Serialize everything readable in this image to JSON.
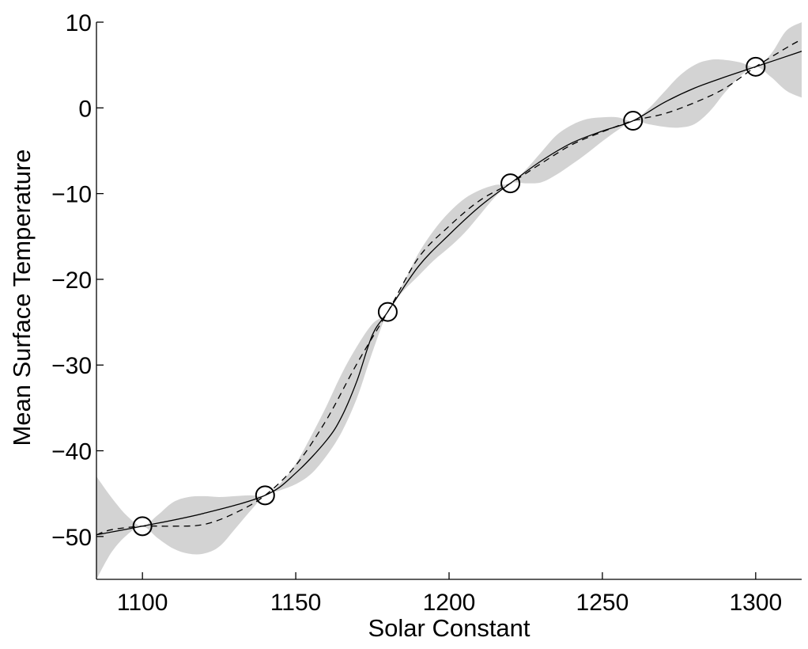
{
  "chart_data": {
    "type": "line",
    "title": "",
    "xlabel": "Solar Constant",
    "ylabel": "Mean Surface Temperature",
    "xlim": [
      1085,
      1315
    ],
    "ylim": [
      -55,
      10
    ],
    "xticks": [
      1100,
      1150,
      1200,
      1250,
      1300
    ],
    "yticks": [
      10,
      0,
      -10,
      -20,
      -30,
      -40,
      -50
    ],
    "xtick_labels": [
      "1100",
      "1150",
      "1200",
      "1250",
      "1300"
    ],
    "ytick_labels": [
      "10",
      "0",
      "−10",
      "−20",
      "−30",
      "−40",
      "−50"
    ],
    "grid": false,
    "legend": "none",
    "colors": {
      "band": "#d3d3d3",
      "line": "#000000"
    },
    "observations": {
      "x": [
        1100,
        1140,
        1180,
        1220,
        1260,
        1300
      ],
      "y": [
        -48.8,
        -45.2,
        -23.8,
        -8.8,
        -1.5,
        4.8
      ]
    },
    "series": [
      {
        "style": "solid",
        "x": [
          1085,
          1100,
          1120,
          1140,
          1150,
          1160,
          1165,
          1170,
          1175,
          1180,
          1190,
          1200,
          1210,
          1220,
          1230,
          1240,
          1250,
          1260,
          1270,
          1280,
          1290,
          1300,
          1315
        ],
        "y": [
          -49.8,
          -48.8,
          -47.3,
          -45.2,
          -42.6,
          -38.8,
          -36.0,
          -31.8,
          -26.5,
          -23.8,
          -18.5,
          -14.8,
          -11.5,
          -8.8,
          -6.2,
          -4.1,
          -2.7,
          -1.5,
          0.6,
          2.3,
          3.6,
          4.8,
          6.6
        ]
      },
      {
        "style": "dashed",
        "x": [
          1085,
          1090,
          1100,
          1110,
          1120,
          1130,
          1140,
          1150,
          1160,
          1170,
          1180,
          1190,
          1200,
          1210,
          1220,
          1230,
          1240,
          1250,
          1260,
          1270,
          1280,
          1290,
          1300,
          1310,
          1315
        ],
        "y": [
          -49.8,
          -49.2,
          -48.8,
          -48.8,
          -48.6,
          -47.3,
          -45.2,
          -41.7,
          -36.4,
          -29.8,
          -23.8,
          -17.5,
          -13.8,
          -10.8,
          -8.8,
          -6.5,
          -4.3,
          -2.8,
          -1.5,
          -0.7,
          0.6,
          2.3,
          4.8,
          7.0,
          8.0
        ]
      }
    ],
    "uncertainty_band": {
      "x": [
        1085,
        1090,
        1095,
        1100,
        1105,
        1110,
        1115,
        1120,
        1125,
        1130,
        1135,
        1140,
        1145,
        1150,
        1155,
        1160,
        1165,
        1170,
        1175,
        1180,
        1185,
        1190,
        1195,
        1200,
        1205,
        1210,
        1215,
        1220,
        1225,
        1230,
        1235,
        1240,
        1245,
        1250,
        1255,
        1260,
        1265,
        1270,
        1275,
        1280,
        1285,
        1290,
        1295,
        1300,
        1305,
        1310,
        1315
      ],
      "upper": [
        -43.0,
        -45.5,
        -47.6,
        -48.8,
        -47.5,
        -46.0,
        -45.4,
        -45.3,
        -45.4,
        -45.3,
        -45.2,
        -45.2,
        -43.8,
        -41.5,
        -38.3,
        -34.8,
        -31.0,
        -27.8,
        -25.2,
        -23.8,
        -20.5,
        -17.0,
        -14.3,
        -12.2,
        -10.6,
        -9.6,
        -9.0,
        -8.8,
        -7.2,
        -5.2,
        -3.2,
        -2.0,
        -1.3,
        -1.1,
        -1.1,
        -1.5,
        -0.1,
        1.8,
        3.7,
        5.0,
        5.6,
        5.6,
        5.3,
        4.8,
        6.3,
        9.0,
        10.0
      ],
      "lower": [
        -55.0,
        -51.8,
        -49.8,
        -48.8,
        -50.2,
        -51.4,
        -52.0,
        -52.0,
        -51.2,
        -49.2,
        -47.1,
        -45.2,
        -44.6,
        -43.9,
        -42.7,
        -40.6,
        -37.8,
        -33.8,
        -28.5,
        -23.8,
        -21.4,
        -19.6,
        -17.8,
        -16.3,
        -14.6,
        -12.5,
        -10.4,
        -8.8,
        -8.8,
        -8.7,
        -7.8,
        -6.6,
        -5.3,
        -3.9,
        -2.6,
        -1.5,
        -1.9,
        -2.2,
        -2.3,
        -1.9,
        -0.4,
        1.8,
        3.7,
        4.8,
        3.6,
        2.0,
        1.2
      ]
    }
  }
}
